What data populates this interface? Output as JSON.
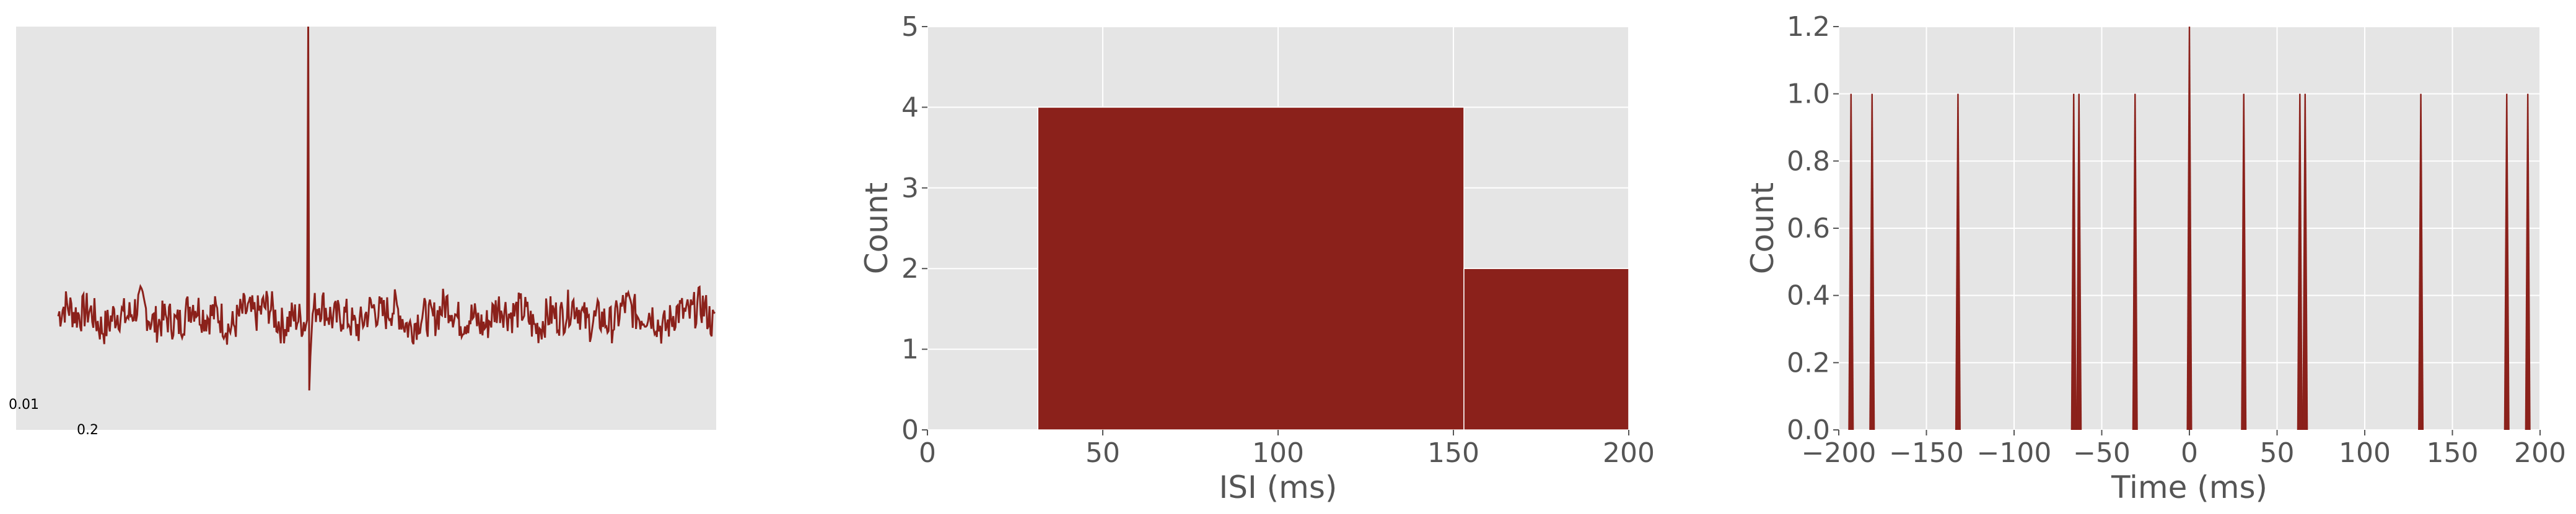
{
  "colors": {
    "accent": "#8b211b",
    "plot_bg": "#e5e5e5",
    "grid": "#ffffff",
    "text": "#555555"
  },
  "chart_data": [
    {
      "type": "line",
      "title": "",
      "xlabel": "",
      "ylabel": "",
      "scale_bar": {
        "amplitude_label": "0.01",
        "time_label": "0.2"
      },
      "spike_index": 228,
      "baseline": 0.0,
      "noise_amplitude": 0.22,
      "spike_peak": 3.3,
      "undershoot": -0.85,
      "samples": 600,
      "ylim": [
        -1.3,
        3.3
      ]
    },
    {
      "type": "bar",
      "title": "",
      "xlabel": "ISI (ms)",
      "ylabel": "Count",
      "bins": [
        {
          "x0": 0,
          "x1": 31.5,
          "count": 0
        },
        {
          "x0": 31.5,
          "x1": 153,
          "count": 4
        },
        {
          "x0": 153,
          "x1": 200,
          "count": 2
        }
      ],
      "xlim": [
        0,
        200
      ],
      "ylim": [
        0,
        5
      ],
      "xticks": [
        "0",
        "50",
        "100",
        "150",
        "200"
      ],
      "yticks": [
        "0",
        "1",
        "2",
        "3",
        "4",
        "5"
      ],
      "grid": true
    },
    {
      "type": "bar",
      "title": "",
      "xlabel": "Time (ms)",
      "ylabel": "Count",
      "spikes": [
        {
          "x": -193,
          "count": 1
        },
        {
          "x": -181,
          "count": 1
        },
        {
          "x": -132,
          "count": 1
        },
        {
          "x": -66,
          "count": 1
        },
        {
          "x": -63,
          "count": 1
        },
        {
          "x": -31,
          "count": 1
        },
        {
          "x": 0,
          "count": 1.25
        },
        {
          "x": 31,
          "count": 1
        },
        {
          "x": 63,
          "count": 1
        },
        {
          "x": 66,
          "count": 1
        },
        {
          "x": 132,
          "count": 1
        },
        {
          "x": 181,
          "count": 1
        },
        {
          "x": 193,
          "count": 1
        }
      ],
      "xlim": [
        -200,
        200
      ],
      "ylim": [
        0,
        1.2
      ],
      "xticks": [
        "−200",
        "−150",
        "−100",
        "−50",
        "0",
        "50",
        "100",
        "150",
        "200"
      ],
      "yticks": [
        "0.0",
        "0.2",
        "0.4",
        "0.6",
        "0.8",
        "1.0",
        "1.2"
      ],
      "grid": true
    }
  ]
}
